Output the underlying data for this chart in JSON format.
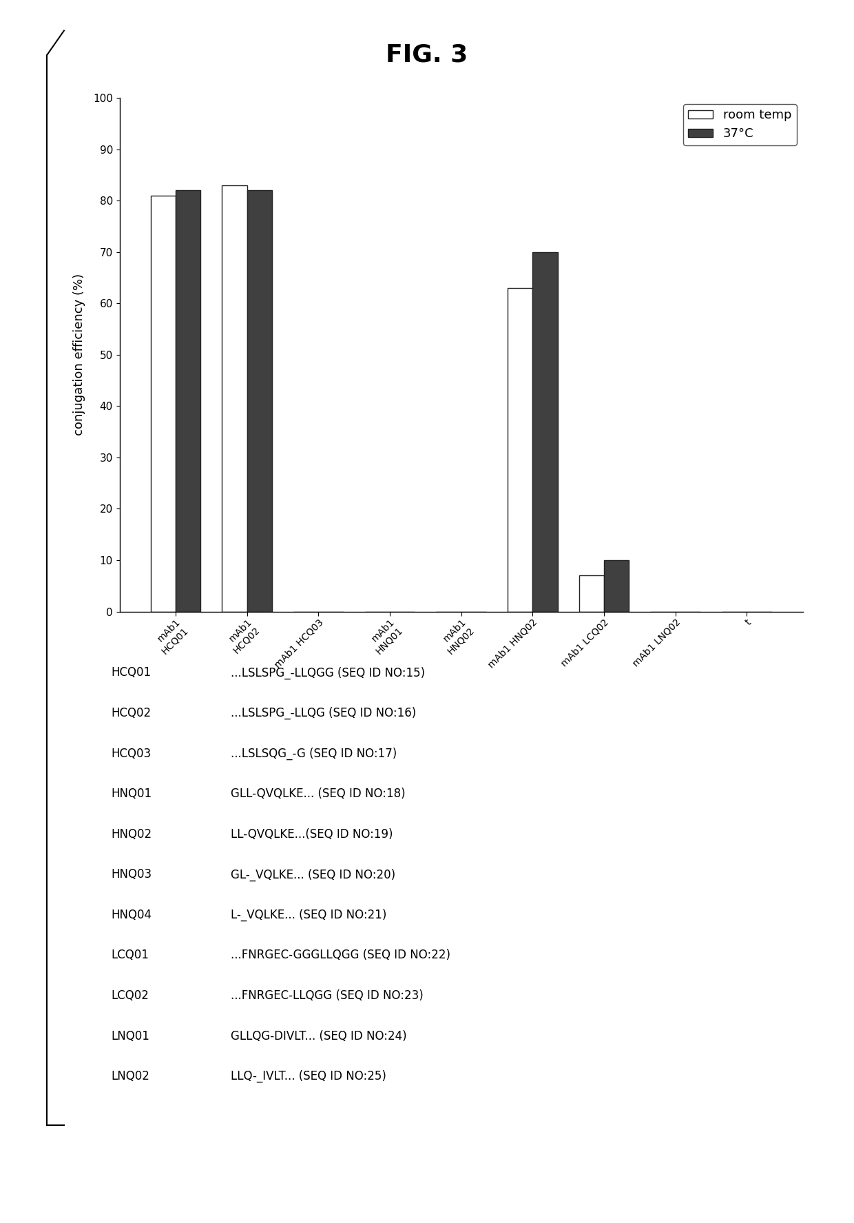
{
  "title": "FIG. 3",
  "ylabel": "conjugation efficiency (%)",
  "ylim": [
    0,
    100
  ],
  "yticks": [
    0,
    10,
    20,
    30,
    40,
    50,
    60,
    70,
    80,
    90,
    100
  ],
  "room_temp_values": [
    81,
    83,
    0,
    0,
    0,
    63,
    7,
    0,
    0
  ],
  "temp37_values": [
    82,
    82,
    0,
    0,
    0,
    70,
    10,
    0,
    0
  ],
  "bar_width": 0.35,
  "room_temp_color": "white",
  "temp37_color": "#404040",
  "room_temp_edgecolor": "#222222",
  "temp37_edgecolor": "#222222",
  "legend_labels": [
    "room temp",
    "37°C"
  ],
  "x_tick_labels": [
    "mAb1\nHCQ01",
    "mAb1\nHCQ02",
    "mAb1 HCQ03",
    "mAb1\nHNQ01",
    "mAb1\nHNQ02",
    "mAb1 HNQ02",
    "mAb1 LCQ02",
    "mAb1 LNQ02",
    "t"
  ],
  "annotation_labels": [
    "HCQ01",
    "HCQ02",
    "HCQ03",
    "HNQ01",
    "HNQ02",
    "HNQ03",
    "HNQ04",
    "LCQ01",
    "LCQ02",
    "LNQ01",
    "LNQ02"
  ],
  "annotation_seqs": [
    "...LSLSPG_-LLQGG (SEQ ID NO:15)",
    "...LSLSPG_-LLQG (SEQ ID NO:16)",
    "...LSLSQG_-G (SEQ ID NO:17)",
    "GLL-QVQLKE... (SEQ ID NO:18)",
    "LL-QVQLKE...(SEQ ID NO:19)",
    "GL-_VQLKE... (SEQ ID NO:20)",
    "L-_VQLKE... (SEQ ID NO:21)",
    "...FNRGEC-GGGLLQGG (SEQ ID NO:22)",
    "...FNRGEC-LLQGG (SEQ ID NO:23)",
    "GLLQG-DIVLT... (SEQ ID NO:24)",
    "LLQ-_IVLT... (SEQ ID NO:25)"
  ]
}
